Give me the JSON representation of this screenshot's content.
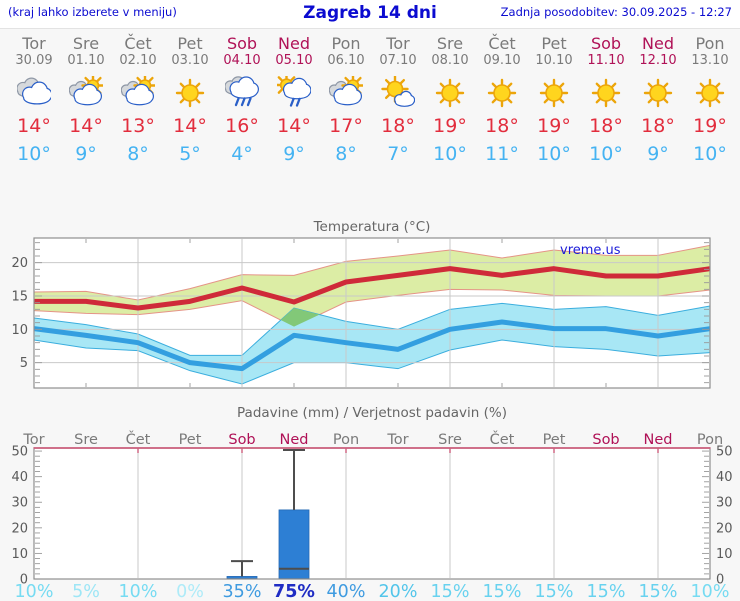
{
  "header": {
    "left_note": "(kraj lahko izberete v meniju)",
    "title": "Zagreb 14 dni",
    "updated": "Zadnja posodobitev: 30.09.2025 - 12:27"
  },
  "watermark": "vreme.us",
  "colors": {
    "header_blue": "#0b0bd0",
    "weekday_gray": "#7a7a7a",
    "weekend_red": "#b01257",
    "high_temp_text": "#e22d3d",
    "low_temp_text": "#45b3f2",
    "title_text": "#666666",
    "axis_text": "#5a5a5a",
    "grid": "#c9c9c9",
    "plot_border": "#8f8f8f",
    "tick": "#999999",
    "temp_max_line": "#cf2a39",
    "temp_max_band": "#dceda5",
    "temp_max_band_edge": "#e59487",
    "temp_min_line": "#339fe0",
    "temp_min_band": "#a8e7f5",
    "temp_min_band_edge": "#3baede",
    "overlap_green": "#82c878",
    "bar_blue": "#2d7fd4",
    "bar_edge": "#2569b4",
    "whisker": "#4d4d4d",
    "precip_top_border": "#cc5f7d",
    "watermark_blue": "#1b1bd8"
  },
  "forecast": {
    "days": [
      {
        "name": "Tor",
        "date": "30.09",
        "weekend": false,
        "icon": "cloudy",
        "high": "14°",
        "low": "10°"
      },
      {
        "name": "Sre",
        "date": "01.10",
        "weekend": false,
        "icon": "partly-cloudy",
        "high": "14°",
        "low": "9°"
      },
      {
        "name": "Čet",
        "date": "02.10",
        "weekend": false,
        "icon": "partly-cloudy",
        "high": "13°",
        "low": "8°"
      },
      {
        "name": "Pet",
        "date": "03.10",
        "weekend": false,
        "icon": "sunny",
        "high": "14°",
        "low": "5°"
      },
      {
        "name": "Sob",
        "date": "04.10",
        "weekend": true,
        "icon": "rain",
        "high": "16°",
        "low": "4°"
      },
      {
        "name": "Ned",
        "date": "05.10",
        "weekend": true,
        "icon": "sun-rain",
        "high": "14°",
        "low": "9°"
      },
      {
        "name": "Pon",
        "date": "06.10",
        "weekend": false,
        "icon": "partly-cloudy",
        "high": "17°",
        "low": "8°"
      },
      {
        "name": "Tor",
        "date": "07.10",
        "weekend": false,
        "icon": "mostly-sunny",
        "high": "18°",
        "low": "7°"
      },
      {
        "name": "Sre",
        "date": "08.10",
        "weekend": false,
        "icon": "sunny",
        "high": "19°",
        "low": "10°"
      },
      {
        "name": "Čet",
        "date": "09.10",
        "weekend": false,
        "icon": "sunny",
        "high": "18°",
        "low": "11°"
      },
      {
        "name": "Pet",
        "date": "10.10",
        "weekend": false,
        "icon": "sunny",
        "high": "19°",
        "low": "10°"
      },
      {
        "name": "Sob",
        "date": "11.10",
        "weekend": true,
        "icon": "sunny",
        "high": "18°",
        "low": "10°"
      },
      {
        "name": "Ned",
        "date": "12.10",
        "weekend": true,
        "icon": "sunny",
        "high": "18°",
        "low": "9°"
      },
      {
        "name": "Pon",
        "date": "13.10",
        "weekend": false,
        "icon": "sunny",
        "high": "19°",
        "low": "10°"
      }
    ]
  },
  "chart_data": [
    {
      "type": "line",
      "title": "Temperatura (°C)",
      "categories": [
        "Tor",
        "Sre",
        "Čet",
        "Pet",
        "Sob",
        "Ned",
        "Pon",
        "Tor",
        "Sre",
        "Čet",
        "Pet",
        "Sob",
        "Ned",
        "Pon"
      ],
      "ylim": [
        1.2,
        23.7
      ],
      "yticks": [
        5,
        10,
        15,
        20
      ],
      "grid": "on",
      "legend": "none",
      "series": [
        {
          "name": "max_temp",
          "values": [
            14.2,
            14.2,
            13.2,
            14.2,
            16.2,
            14.1,
            17.1,
            18.1,
            19.1,
            18.1,
            19.1,
            18.0,
            18.0,
            19.1
          ]
        },
        {
          "name": "max_band_upper",
          "values": [
            15.6,
            15.7,
            14.4,
            16.1,
            18.2,
            18.1,
            20.2,
            21.0,
            21.9,
            20.7,
            21.9,
            21.1,
            21.1,
            22.6
          ]
        },
        {
          "name": "max_band_lower",
          "values": [
            12.8,
            12.4,
            12.2,
            13.0,
            14.3,
            10.4,
            14.1,
            15.1,
            16.0,
            15.9,
            15.1,
            15.0,
            15.0,
            15.9
          ]
        },
        {
          "name": "min_temp",
          "values": [
            10.1,
            9.1,
            8.0,
            5.0,
            4.1,
            9.1,
            8.0,
            7.0,
            10.0,
            11.1,
            10.1,
            10.1,
            9.0,
            10.1
          ]
        },
        {
          "name": "min_band_upper",
          "values": [
            11.7,
            10.7,
            9.3,
            6.1,
            6.1,
            13.2,
            11.2,
            10.0,
            13.0,
            13.9,
            13.0,
            13.4,
            12.1,
            13.5
          ]
        },
        {
          "name": "min_band_lower",
          "values": [
            8.4,
            7.2,
            6.8,
            3.8,
            1.8,
            5.0,
            5.0,
            4.1,
            6.9,
            8.4,
            7.4,
            7.0,
            6.0,
            6.5
          ]
        }
      ],
      "overlap_diamond_day_value": [
        [
          4.745,
          11.4
        ],
        [
          5,
          13.2
        ],
        [
          5.49,
          12.2
        ],
        [
          5,
          10.4
        ]
      ]
    },
    {
      "type": "bar",
      "title": "Padavine (mm) / Verjetnost padavin (%)",
      "categories": [
        "Tor",
        "Sre",
        "Čet",
        "Pet",
        "Sob",
        "Ned",
        "Pon",
        "Tor",
        "Sre",
        "Čet",
        "Pet",
        "Sob",
        "Ned",
        "Pon"
      ],
      "weekend_idx": [
        4,
        5,
        11,
        12
      ],
      "values": [
        0,
        0,
        0,
        0,
        1,
        27,
        0,
        0,
        0,
        0,
        0,
        0,
        0,
        0
      ],
      "whiskers": [
        null,
        null,
        null,
        null,
        {
          "low": 1,
          "high": 7,
          "lowcap": false
        },
        {
          "low": 4,
          "high": 52,
          "lowcap": true
        },
        null,
        null,
        null,
        null,
        null,
        null,
        null,
        null
      ],
      "probabilities": [
        "10%",
        "5%",
        "10%",
        "0%",
        "35%",
        "75%",
        "40%",
        "20%",
        "15%",
        "15%",
        "15%",
        "15%",
        "15%",
        "10%"
      ],
      "prob_colors": [
        "#76dbf2",
        "#9de6f6",
        "#76dbf2",
        "#aeebf8",
        "#3f9be0",
        "#1f2cc4",
        "#3f9be0",
        "#52c5ea",
        "#68d2ef",
        "#68d2ef",
        "#68d2ef",
        "#68d2ef",
        "#68d2ef",
        "#76dbf2"
      ],
      "prob_bold_idx": 5,
      "ylim": [
        0,
        51.2
      ],
      "yticks": [
        0,
        10,
        20,
        30,
        40,
        50
      ],
      "grid": "vertical-only"
    }
  ]
}
